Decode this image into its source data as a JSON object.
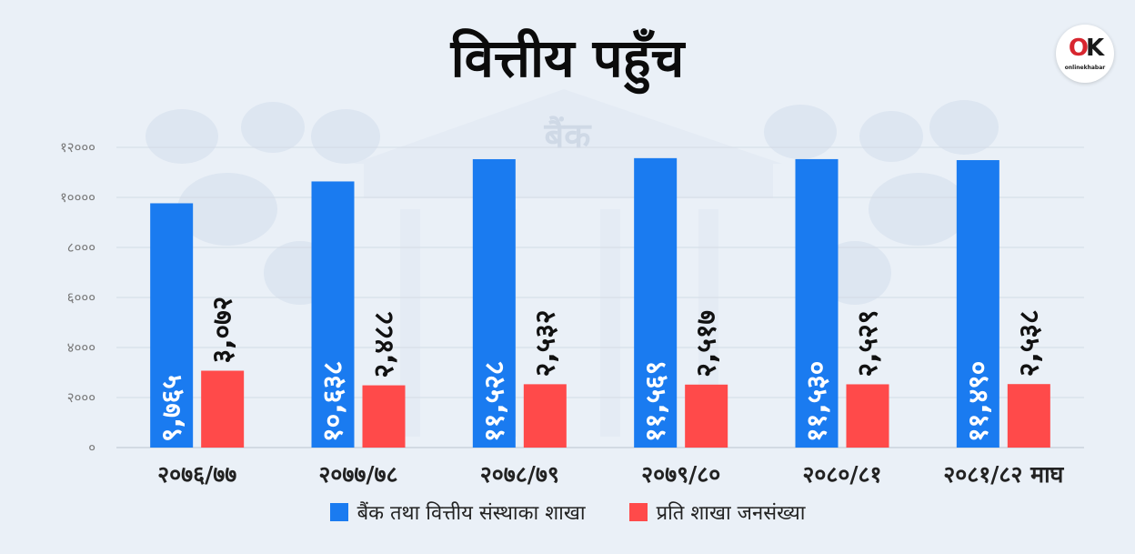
{
  "title": "वित्तीय पहुँच",
  "background_label": "बैंक",
  "logo": {
    "mark_o": "O",
    "mark_k": "K",
    "text": "onlinekhabar"
  },
  "colors": {
    "branches": "#1a7bf0",
    "population": "#ff4a4a"
  },
  "chart_data": {
    "type": "bar",
    "categories": [
      "२०७६/७७",
      "२०७७/७८",
      "२०७८/७९",
      "२०७९/८०",
      "२०८०/८१",
      "२०८१/८२ माघ"
    ],
    "series": [
      {
        "name": "बैंक तथा वित्तीय संस्थाका शाखा",
        "values": [
          9765,
          10638,
          11528,
          11569,
          11530,
          11490
        ],
        "labels": [
          "९,७६५",
          "१०,६३८",
          "११,५२८",
          "११,५६९",
          "११,५३०",
          "११,४९०"
        ]
      },
      {
        "name": "प्रति शाखा जनसंख्या",
        "values": [
          3072,
          2488,
          2532,
          2517,
          2529,
          2538
        ],
        "labels": [
          "३,०७२",
          "२,४८८",
          "२,५३२",
          "२,५१७",
          "२,५२९",
          "२,५३८"
        ]
      }
    ],
    "yticks": [
      "०",
      "२०००",
      "४०००",
      "६०००",
      "८०००",
      "१००००",
      "१२०००"
    ],
    "ylim": [
      0,
      12000
    ],
    "grid": true,
    "legend": "bottom-center"
  }
}
